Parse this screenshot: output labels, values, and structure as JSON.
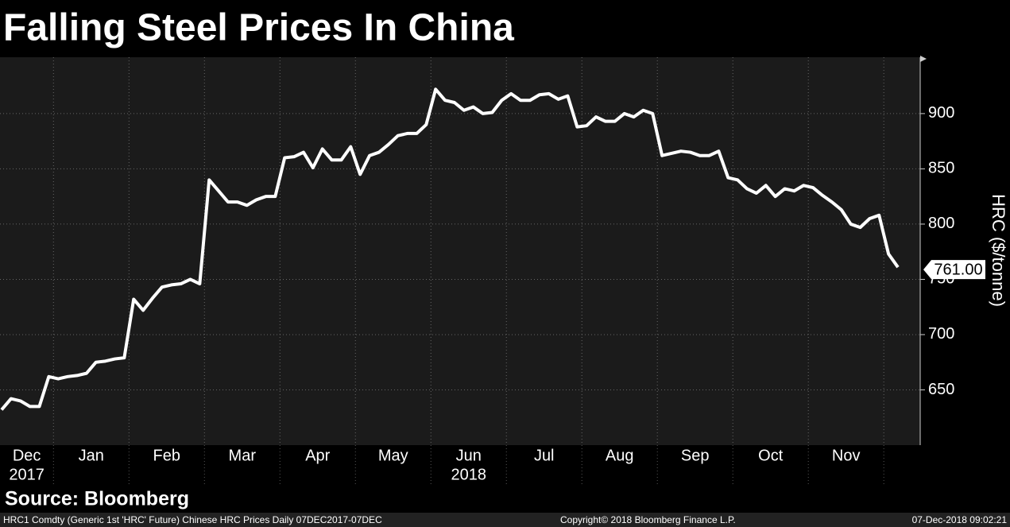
{
  "chart_data": {
    "type": "line",
    "title": "Falling Steel Prices In China",
    "y_label": "HRC ($/tonne)",
    "categories": [
      "Dec",
      "Jan",
      "Feb",
      "Mar",
      "Apr",
      "May",
      "Jun",
      "Jul",
      "Aug",
      "Sep",
      "Oct",
      "Nov",
      null
    ],
    "year_labels": [
      {
        "label": "2017",
        "from": 0,
        "to": 0
      },
      {
        "label": "2018",
        "from": 1,
        "to": 11
      }
    ],
    "series": [
      {
        "name": "HRC1 Comdty",
        "color": "#ffffff",
        "last_label": "761.00",
        "values": [
          [
            632,
            642,
            640,
            635,
            635,
            662
          ],
          [
            660,
            662,
            663,
            665,
            675,
            676,
            678,
            679
          ],
          [
            732,
            722,
            733,
            743,
            745,
            746,
            750,
            746
          ],
          [
            840,
            830,
            820,
            820,
            817,
            822,
            825,
            825
          ],
          [
            860,
            861,
            865,
            851,
            868,
            858,
            858,
            870
          ],
          [
            845,
            862,
            865,
            872,
            880,
            882,
            882,
            890
          ],
          [
            922,
            912,
            910,
            903,
            906,
            900,
            901,
            912
          ],
          [
            918,
            912,
            912,
            917,
            918,
            913,
            916,
            888
          ],
          [
            889,
            897,
            893,
            893,
            900,
            897,
            903,
            900
          ],
          [
            862,
            864,
            866,
            865,
            862,
            862,
            866,
            842
          ],
          [
            840,
            832,
            828,
            835,
            825,
            832,
            830,
            835
          ],
          [
            833,
            826,
            820,
            813,
            800,
            797,
            805,
            808
          ],
          [
            773,
            761
          ]
        ]
      }
    ],
    "ylim": [
      600,
      951
    ],
    "yticks": [
      650,
      700,
      750,
      800,
      850,
      900
    ],
    "grid": true,
    "source": "Source: Bloomberg",
    "footer_left": "HRC1 Comdty (Generic 1st 'HRC' Future) Chinese HRC Prices  Daily 07DEC2017-07DEC",
    "footer_mid": "Copyright© 2018 Bloomberg Finance L.P.",
    "footer_right": "07-Dec-2018 09:02:21"
  }
}
